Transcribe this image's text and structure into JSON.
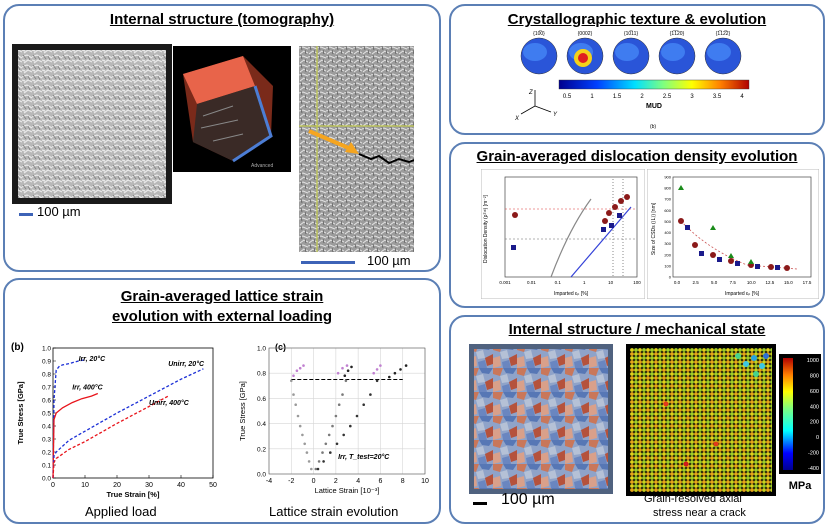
{
  "panels": {
    "tomo": {
      "title": "Internal structure (tomography)",
      "scale1": "100 µm",
      "scale2": "100 µm",
      "inset_label": "Advanced"
    },
    "texture": {
      "title": "Crystallographic texture & evolution",
      "poles": [
        "{10̅0}",
        "{0002}",
        "{10̅11}",
        "{1̅1̅20}",
        "{1̅12̅2}"
      ],
      "colorbar_ticks": [
        "0.5",
        "1",
        "1.5",
        "2",
        "2.5",
        "3",
        "3.5",
        "4"
      ],
      "colorbar_label": "MUD",
      "axes": [
        "Z",
        "Y",
        "X"
      ],
      "sublabel": "(b)"
    },
    "dislocation": {
      "title": "Grain-averaged dislocation density evolution",
      "left_ylabel": "Dislocation Density (ρᵀᵒᵗ) [m⁻²]",
      "left_xlabel": "Imparted εₚ [%]",
      "right_ylabel": "Size of CSDs (⟨L⟩) [nm]",
      "right_xlabel": "Imparted εₚ [%]",
      "left_xticks": [
        "0.001",
        "0.01",
        "0.1",
        "1",
        "10",
        "100"
      ],
      "right_xticks": [
        "0.0",
        "2.5",
        "5.0",
        "7.5",
        "10.0",
        "12.5",
        "15.0",
        "17.5"
      ],
      "right_yticks": [
        "0",
        "100",
        "200",
        "300",
        "400",
        "500",
        "600",
        "700",
        "800",
        "900"
      ]
    },
    "lattice": {
      "title_line1": "Grain-averaged lattice strain",
      "title_line2": "evolution with external loading",
      "caption_left": "Applied load",
      "caption_right": "Lattice strain evolution",
      "label_b": "(b)",
      "label_c": "(c)"
    },
    "mech": {
      "title": "Internal structure / mechanical state",
      "scale": "100 µm",
      "caption_line1": "Grain-resolved  axial",
      "caption_line2": "stress near a crack",
      "colorbar_ticks": [
        "1000",
        "800",
        "600",
        "400",
        "200",
        "0",
        "-200",
        "-400"
      ],
      "colorbar_unit": "MPa"
    }
  },
  "chart_data": [
    {
      "type": "line",
      "title": "",
      "xlabel": "True Strain [%]",
      "ylabel": "True Stress [GPa]",
      "xlim": [
        0,
        50
      ],
      "ylim": [
        0,
        1.0
      ],
      "xticks": [
        "0",
        "10",
        "20",
        "30",
        "40",
        "50"
      ],
      "yticks": [
        "0.0",
        "0.1",
        "0.2",
        "0.3",
        "0.4",
        "0.5",
        "0.6",
        "0.7",
        "0.8",
        "0.9",
        "1.0"
      ],
      "series": [
        {
          "name": "Irr, 20°C",
          "color": "#1b2fd6",
          "style": "dash",
          "x": [
            0,
            0.3,
            1,
            2,
            3,
            5,
            8,
            10
          ],
          "y": [
            0,
            0.6,
            0.83,
            0.86,
            0.87,
            0.88,
            0.9,
            0.91
          ]
        },
        {
          "name": "Irr, 400°C",
          "color": "#e8141b",
          "style": "solid",
          "x": [
            0,
            0.3,
            1,
            3,
            6,
            9,
            12,
            14
          ],
          "y": [
            0,
            0.45,
            0.5,
            0.54,
            0.58,
            0.61,
            0.63,
            0.65
          ]
        },
        {
          "name": "Unirr, 20°C",
          "color": "#1b2fd6",
          "style": "dash",
          "x": [
            0,
            0.3,
            1,
            5,
            10,
            20,
            30,
            40,
            47
          ],
          "y": [
            0,
            0.17,
            0.2,
            0.29,
            0.36,
            0.5,
            0.63,
            0.76,
            0.84
          ]
        },
        {
          "name": "Unirr, 400°C",
          "color": "#e8141b",
          "style": "dash",
          "x": [
            0,
            0.3,
            1,
            5,
            10,
            20,
            30,
            36
          ],
          "y": [
            0,
            0.12,
            0.15,
            0.22,
            0.28,
            0.42,
            0.55,
            0.63
          ]
        }
      ],
      "annotations": [
        "Irr, 20°C",
        "Irr, 400°C",
        "Unirr, 20°C",
        "Unirr, 400°C"
      ]
    },
    {
      "type": "scatter",
      "title": "",
      "xlabel": "Lattice Strain [10⁻³]",
      "ylabel": "True Stress [GPa]",
      "xlim": [
        -4,
        10
      ],
      "ylim": [
        0,
        1.0
      ],
      "xticks": [
        "-4",
        "-2",
        "0",
        "2",
        "4",
        "6",
        "8",
        "10"
      ],
      "yticks": [
        "0.0",
        "0.2",
        "0.4",
        "0.6",
        "0.8",
        "1.0"
      ],
      "annotation": "Irr, T_test=20°C",
      "reference_line_y": 0.75,
      "series": [
        {
          "color": "#9a9a9a",
          "x": [
            -0.2,
            -0.4,
            -0.6,
            -0.8,
            -1.0,
            -1.2,
            -1.4,
            -1.6,
            -1.8,
            -2.0
          ],
          "y": [
            0.04,
            0.1,
            0.17,
            0.24,
            0.31,
            0.38,
            0.46,
            0.55,
            0.63,
            0.74
          ]
        },
        {
          "color": "#7a7a7a",
          "x": [
            0.2,
            0.5,
            0.8,
            1.1,
            1.4,
            1.7,
            2.0,
            2.3,
            2.6,
            2.9
          ],
          "y": [
            0.04,
            0.1,
            0.17,
            0.24,
            0.31,
            0.38,
            0.46,
            0.55,
            0.63,
            0.74
          ]
        },
        {
          "color": "#333333",
          "x": [
            0.4,
            0.9,
            1.5,
            2.1,
            2.7,
            3.3,
            3.9,
            4.5,
            5.1,
            5.7
          ],
          "y": [
            0.04,
            0.1,
            0.17,
            0.24,
            0.31,
            0.38,
            0.46,
            0.55,
            0.63,
            0.74
          ]
        },
        {
          "color": "#c080d0",
          "x": [
            -1.8,
            -1.5,
            -1.2,
            -0.9,
            2.2,
            2.6,
            3.0,
            5.4,
            5.7,
            6.0
          ],
          "y": [
            0.78,
            0.82,
            0.84,
            0.86,
            0.8,
            0.84,
            0.86,
            0.8,
            0.83,
            0.86
          ]
        },
        {
          "color": "#222222",
          "x": [
            2.8,
            3.1,
            3.4,
            6.8,
            7.3,
            7.8,
            8.3
          ],
          "y": [
            0.78,
            0.82,
            0.85,
            0.77,
            0.8,
            0.83,
            0.86
          ]
        }
      ]
    }
  ]
}
